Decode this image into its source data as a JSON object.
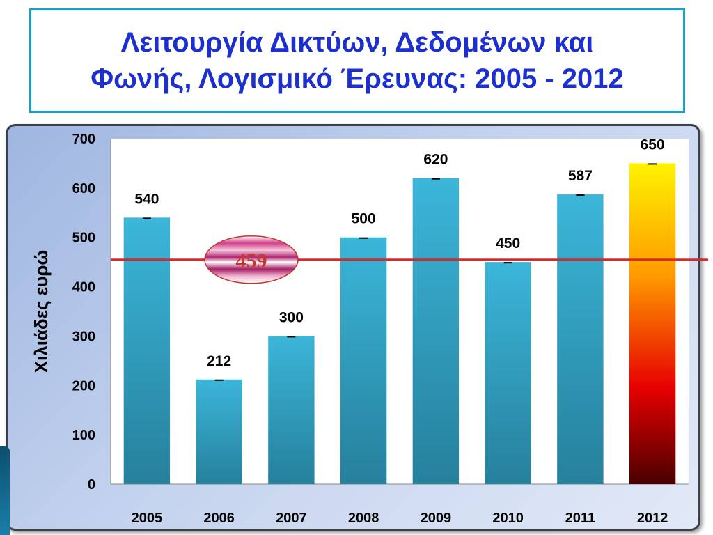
{
  "title_line1": "Λειτουργία Δικτύων, Δεδομένων και",
  "title_line2": "Φωνής, Λογισμικό Έρευνας:  2005 - 2012",
  "chart_data": {
    "type": "bar",
    "categories": [
      "2005",
      "2006",
      "2007",
      "2008",
      "2009",
      "2010",
      "2011",
      "2012"
    ],
    "values": [
      540,
      212,
      300,
      500,
      620,
      450,
      587,
      650
    ],
    "ylabel": "Χιλιάδες ευρώ",
    "xlabel": "",
    "ylim": [
      0,
      700
    ],
    "yticks": [
      0,
      100,
      200,
      300,
      400,
      500,
      600,
      700
    ],
    "grid": false,
    "reference_line": {
      "value": 459,
      "label": "459",
      "color": "#d62a2a"
    },
    "colors": {
      "bar": "#2ea6c8",
      "highlight_top": "#fff200",
      "highlight_bottom": "#4a0000"
    },
    "highlight_category": "2012"
  }
}
